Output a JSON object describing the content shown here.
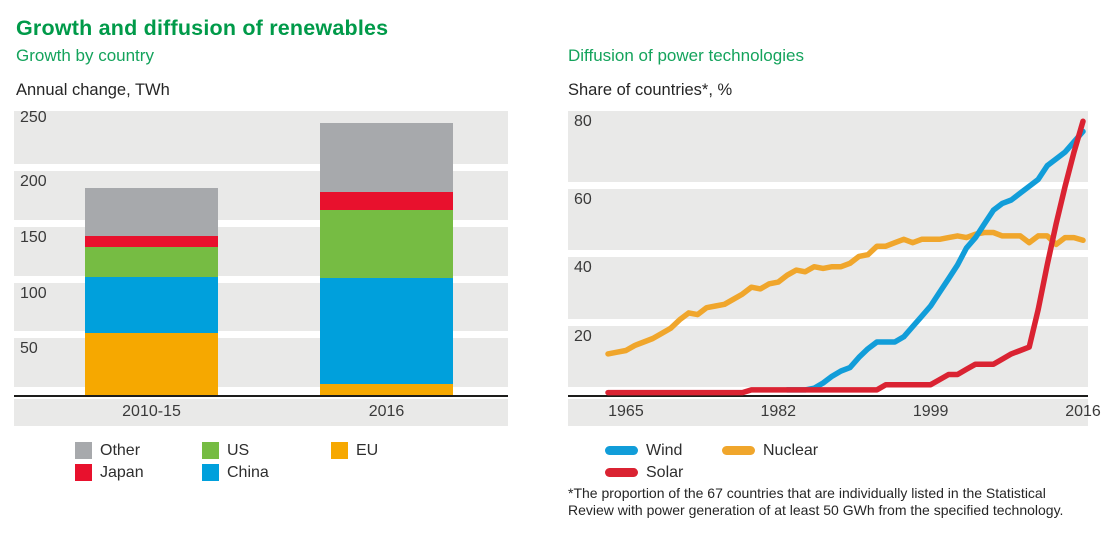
{
  "title": "Growth and diffusion of renewables",
  "colors": {
    "title_green": "#009a49",
    "subtitle_green": "#14a35c",
    "band_gray": "#e9e9e8",
    "axis_black": "#1d1d1b",
    "text_dark": "#262626"
  },
  "chart_data": [
    {
      "type": "bar",
      "title": "Growth by country",
      "ylabel": "Annual change, TWh",
      "categories": [
        "2010-15",
        "2016"
      ],
      "y_ticks": [
        250,
        200,
        150,
        100,
        50,
        0
      ],
      "ylim": [
        0,
        255
      ],
      "grid": "banded",
      "series": [
        {
          "name": "EU",
          "color": "#f6a800",
          "values": [
            56,
            10
          ]
        },
        {
          "name": "China",
          "color": "#00a0dc",
          "values": [
            50,
            95
          ]
        },
        {
          "name": "US",
          "color": "#76bc43",
          "values": [
            27,
            61
          ]
        },
        {
          "name": "Japan",
          "color": "#e8112d",
          "values": [
            10,
            16
          ]
        },
        {
          "name": "Other",
          "color": "#a7a9ac",
          "values": [
            43,
            62
          ]
        }
      ],
      "totals": [
        186,
        244
      ],
      "legend_position": "bottom",
      "legend_rows": [
        [
          "Other",
          "US",
          "EU"
        ],
        [
          "Japan",
          "China"
        ]
      ]
    },
    {
      "type": "line",
      "title": "Diffusion of power technologies",
      "ylabel": "Share of countries*, %",
      "x_ticks": [
        1965,
        1982,
        1999,
        2016
      ],
      "xlim": [
        1963,
        2016
      ],
      "y_ticks": [
        80,
        60,
        40,
        20,
        0
      ],
      "ylim": [
        0,
        83
      ],
      "grid": "banded",
      "series": [
        {
          "name": "Nuclear",
          "color": "#f0a62c",
          "start_year": 1963,
          "values": [
            12,
            12.5,
            13,
            14.5,
            15.5,
            16.5,
            18,
            19.5,
            22,
            24,
            23.5,
            25.5,
            26,
            26.5,
            28,
            29.5,
            31.5,
            31,
            32.5,
            33,
            35,
            36.5,
            36,
            37.5,
            37,
            37.5,
            37.5,
            38.5,
            40.5,
            41,
            43.5,
            43.5,
            44.5,
            45.5,
            44.5,
            45.5,
            45.5,
            45.5,
            46,
            46.5,
            46,
            47,
            47.5,
            47.5,
            46.5,
            46.5,
            46.5,
            44.5,
            46.5,
            46.5,
            44,
            46,
            46,
            45.2
          ]
        },
        {
          "name": "Wind",
          "color": "#119dd9",
          "start_year": 1983,
          "values": [
            1.5,
            1.5,
            1.5,
            2,
            3.5,
            5.5,
            7,
            8,
            11,
            13.5,
            15.5,
            15.5,
            15.5,
            17,
            20,
            23,
            26,
            30,
            34,
            38,
            43,
            46,
            50,
            54,
            56,
            57,
            59,
            61,
            63,
            67,
            69,
            71,
            74,
            77
          ]
        },
        {
          "name": "Solar",
          "color": "#da2332",
          "start_year": 1963,
          "values": [
            0.7,
            0.7,
            0.7,
            0.7,
            0.7,
            0.7,
            0.7,
            0.7,
            0.7,
            0.7,
            0.7,
            0.7,
            0.7,
            0.7,
            0.7,
            0.7,
            1.5,
            1.5,
            1.5,
            1.5,
            1.5,
            1.5,
            1.5,
            1.5,
            1.5,
            1.5,
            1.5,
            1.5,
            1.5,
            1.5,
            1.5,
            3,
            3,
            3,
            3,
            3,
            3,
            4.5,
            6,
            6,
            7.5,
            9,
            9,
            9,
            10.5,
            12,
            13,
            14,
            25,
            38,
            50,
            61,
            71,
            80
          ]
        }
      ],
      "legend_position": "bottom",
      "legend_rows": [
        [
          "Wind",
          "Nuclear"
        ],
        [
          "Solar"
        ]
      ],
      "footnote_lines": [
        "*The proportion of the 67 countries that are individually listed in the Statistical",
        "Review with power generation of at least 50 GWh from the specified technology."
      ]
    }
  ]
}
